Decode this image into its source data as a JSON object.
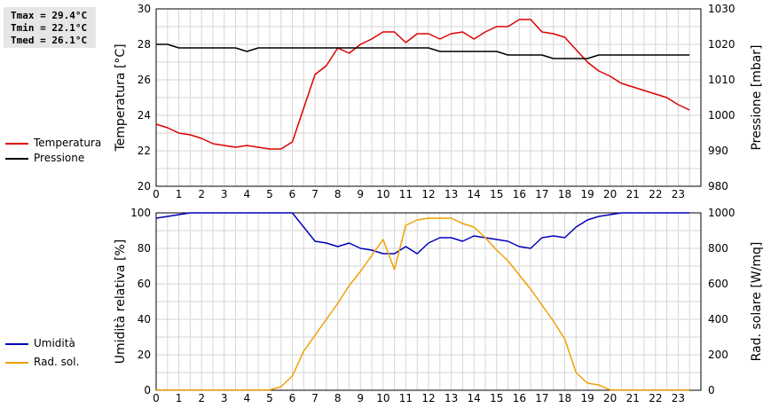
{
  "stats": {
    "tmax": "Tmax = 29.4°C",
    "tmin": "Tmin = 22.1°C",
    "tmed": "Tmed = 26.1°C"
  },
  "legend_top": [
    {
      "label": "Temperatura",
      "color": "#dd0000"
    },
    {
      "label": "Pressione",
      "color": "#000000"
    }
  ],
  "legend_bottom": [
    {
      "label": "Umidità",
      "color": "#0000bb"
    },
    {
      "label": "Rad. sol.",
      "color": "#f0a000"
    }
  ],
  "chart_data": [
    {
      "type": "line",
      "ylabel": "Temperatura [°C]",
      "y2label": "Pressione [mbar]",
      "xlim": [
        0,
        24
      ],
      "xticks": [
        "0",
        "1",
        "2",
        "3",
        "4",
        "5",
        "6",
        "7",
        "8",
        "9",
        "10",
        "11",
        "12",
        "13",
        "14",
        "15",
        "16",
        "17",
        "18",
        "19",
        "20",
        "21",
        "22",
        "23"
      ],
      "ylim": [
        20,
        30
      ],
      "yticks": [
        "20",
        "22",
        "24",
        "26",
        "28",
        "30"
      ],
      "y2lim": [
        980,
        1030
      ],
      "y2ticks": [
        "980",
        "990",
        "1000",
        "1010",
        "1020",
        "1030"
      ],
      "grid": true,
      "series": [
        {
          "name": "Temperatura",
          "axis": "left",
          "color": "#dd0000",
          "x": [
            0,
            0.5,
            1,
            1.5,
            2,
            2.5,
            3,
            3.5,
            4,
            4.5,
            5,
            5.5,
            6,
            6.5,
            7,
            7.5,
            8,
            8.5,
            9,
            9.5,
            10,
            10.5,
            11,
            11.5,
            12,
            12.5,
            13,
            13.5,
            14,
            14.5,
            15,
            15.5,
            16,
            16.5,
            17,
            17.5,
            18,
            18.5,
            19,
            19.5,
            20,
            20.5,
            21,
            21.5,
            22,
            22.5,
            23,
            23.5
          ],
          "values": [
            23.5,
            23.3,
            23.0,
            22.9,
            22.7,
            22.4,
            22.3,
            22.2,
            22.3,
            22.2,
            22.1,
            22.1,
            22.5,
            24.4,
            26.3,
            26.8,
            27.8,
            27.5,
            28.0,
            28.3,
            28.7,
            28.7,
            28.1,
            28.6,
            28.6,
            28.3,
            28.6,
            28.7,
            28.3,
            28.7,
            29.0,
            29.0,
            29.4,
            29.4,
            28.7,
            28.6,
            28.4,
            27.7,
            27.0,
            26.5,
            26.2,
            25.8,
            25.6,
            25.4,
            25.2,
            25.0,
            24.6,
            24.3
          ]
        },
        {
          "name": "Pressione",
          "axis": "right",
          "color": "#000000",
          "x": [
            0,
            0.5,
            1,
            1.5,
            2,
            2.5,
            3,
            3.5,
            4,
            4.5,
            5,
            5.5,
            6,
            6.5,
            7,
            7.5,
            8,
            8.5,
            9,
            9.5,
            10,
            10.5,
            11,
            11.5,
            12,
            12.5,
            13,
            13.5,
            14,
            14.5,
            15,
            15.5,
            16,
            16.5,
            17,
            17.5,
            18,
            18.5,
            19,
            19.5,
            20,
            20.5,
            21,
            21.5,
            22,
            22.5,
            23,
            23.5
          ],
          "values": [
            1020,
            1020,
            1019,
            1019,
            1019,
            1019,
            1019,
            1019,
            1018,
            1019,
            1019,
            1019,
            1019,
            1019,
            1019,
            1019,
            1019,
            1019,
            1019,
            1019,
            1019,
            1019,
            1019,
            1019,
            1019,
            1018,
            1018,
            1018,
            1018,
            1018,
            1018,
            1017,
            1017,
            1017,
            1017,
            1016,
            1016,
            1016,
            1016,
            1017,
            1017,
            1017,
            1017,
            1017,
            1017,
            1017,
            1017,
            1017
          ]
        }
      ]
    },
    {
      "type": "line",
      "ylabel": "Umidità relativa [%]",
      "y2label": "Rad. solare [W/mq]",
      "xlim": [
        0,
        24
      ],
      "xticks": [
        "0",
        "1",
        "2",
        "3",
        "4",
        "5",
        "6",
        "7",
        "8",
        "9",
        "10",
        "11",
        "12",
        "13",
        "14",
        "15",
        "16",
        "17",
        "18",
        "19",
        "20",
        "21",
        "22",
        "23"
      ],
      "ylim": [
        0,
        100
      ],
      "yticks": [
        "0",
        "20",
        "40",
        "60",
        "80",
        "100"
      ],
      "y2lim": [
        0,
        1000
      ],
      "y2ticks": [
        "0",
        "200",
        "400",
        "600",
        "800",
        "1000"
      ],
      "grid": true,
      "series": [
        {
          "name": "Umidità",
          "axis": "left",
          "color": "#0000bb",
          "x": [
            0,
            0.5,
            1,
            1.5,
            2,
            2.5,
            3,
            3.5,
            4,
            4.5,
            5,
            5.5,
            6,
            6.5,
            7,
            7.5,
            8,
            8.5,
            9,
            9.5,
            10,
            10.5,
            11,
            11.5,
            12,
            12.5,
            13,
            13.5,
            14,
            14.5,
            15,
            15.5,
            16,
            16.5,
            17,
            17.5,
            18,
            18.5,
            19,
            19.5,
            20,
            20.5,
            21,
            21.5,
            22,
            22.5,
            23,
            23.5
          ],
          "values": [
            97,
            98,
            99,
            100,
            100,
            100,
            100,
            100,
            100,
            100,
            100,
            100,
            100,
            92,
            84,
            83,
            81,
            83,
            80,
            79,
            77,
            77,
            81,
            77,
            83,
            86,
            86,
            84,
            87,
            86,
            85,
            84,
            81,
            80,
            86,
            87,
            86,
            92,
            96,
            98,
            99,
            100,
            100,
            100,
            100,
            100,
            100,
            100
          ]
        },
        {
          "name": "Rad. sol.",
          "axis": "right",
          "color": "#f0a000",
          "x": [
            0,
            0.5,
            1,
            1.5,
            2,
            2.5,
            3,
            3.5,
            4,
            4.5,
            5,
            5.5,
            6,
            6.5,
            7,
            7.5,
            8,
            8.5,
            9,
            9.5,
            10,
            10.5,
            11,
            11.5,
            12,
            12.5,
            13,
            13.5,
            14,
            14.5,
            15,
            15.5,
            16,
            16.5,
            17,
            17.5,
            18,
            18.5,
            19,
            19.5,
            20,
            20.5,
            21,
            21.5,
            22,
            22.5,
            23,
            23.5
          ],
          "values": [
            2,
            2,
            2,
            2,
            2,
            2,
            2,
            2,
            2,
            2,
            2,
            20,
            80,
            220,
            310,
            400,
            490,
            590,
            670,
            760,
            850,
            680,
            930,
            960,
            970,
            970,
            970,
            940,
            920,
            860,
            790,
            730,
            650,
            570,
            480,
            390,
            290,
            100,
            40,
            30,
            2,
            2,
            2,
            2,
            2,
            2,
            2,
            2
          ]
        }
      ]
    }
  ]
}
